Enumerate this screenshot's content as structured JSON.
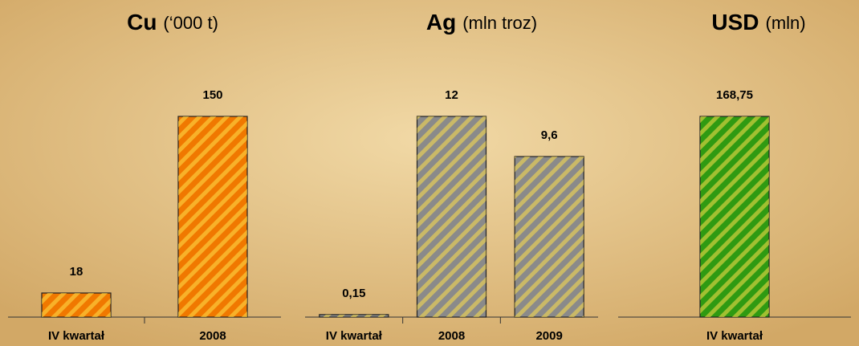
{
  "chart_data": [
    {
      "type": "bar",
      "title": "Cu",
      "subtitle": "(‘000 t)",
      "categories": [
        "IV kwartał",
        "2008"
      ],
      "values": [
        18,
        150
      ],
      "color": "#f07800"
    },
    {
      "type": "bar",
      "title": "Ag",
      "subtitle": "(mln troz)",
      "categories": [
        "IV kwartał",
        "2008",
        "2009"
      ],
      "values": [
        0.15,
        12,
        9.6
      ],
      "value_labels": [
        "0,15",
        "12",
        "9,6"
      ],
      "color": "#8a8a8a"
    },
    {
      "type": "bar",
      "title": "USD",
      "subtitle": "(mln)",
      "categories": [
        "IV kwartał"
      ],
      "values": [
        168.75
      ],
      "value_labels": [
        "168,75"
      ],
      "color": "#2f9a12"
    }
  ]
}
